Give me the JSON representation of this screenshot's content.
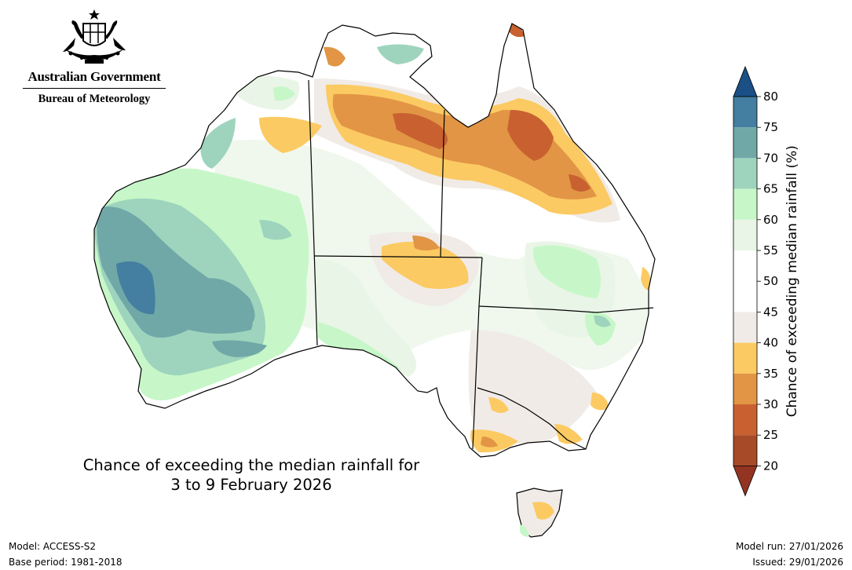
{
  "header": {
    "government": "Australian Government",
    "agency": "Bureau of Meteorology"
  },
  "map": {
    "title_line1": "Chance of exceeding the median rainfall for",
    "title_line2": "3 to 9 February 2026",
    "region": "Australia",
    "state_borders": true
  },
  "legend": {
    "label": "Chance of exceeding median rainfall (%)",
    "ticks": [
      "20",
      "25",
      "30",
      "35",
      "40",
      "45",
      "50",
      "55",
      "60",
      "65",
      "70",
      "75",
      "80"
    ],
    "bins": [
      {
        "range": "20-25",
        "color": "#a74a27"
      },
      {
        "range": "25-30",
        "color": "#c8612f"
      },
      {
        "range": "30-35",
        "color": "#e19545"
      },
      {
        "range": "35-40",
        "color": "#fcca63"
      },
      {
        "range": "40-45",
        "color": "#f0ebe6"
      },
      {
        "range": "45-50",
        "color": "#ffffff"
      },
      {
        "range": "50-55",
        "color": "#ffffff"
      },
      {
        "range": "55-60",
        "color": "#e9f5e6"
      },
      {
        "range": "60-65",
        "color": "#c7f7c8"
      },
      {
        "range": "65-70",
        "color": "#9ed4bd"
      },
      {
        "range": "70-75",
        "color": "#70a8a8"
      },
      {
        "range": "75-80",
        "color": "#447ea0"
      }
    ],
    "below_color": "#933422",
    "above_color": "#1a5086"
  },
  "footer": {
    "model": "Model: ACCESS-S2",
    "base_period": "Base period: 1981-2018",
    "model_run": "Model run: 27/01/2026",
    "issued": "Issued: 29/01/2026"
  }
}
